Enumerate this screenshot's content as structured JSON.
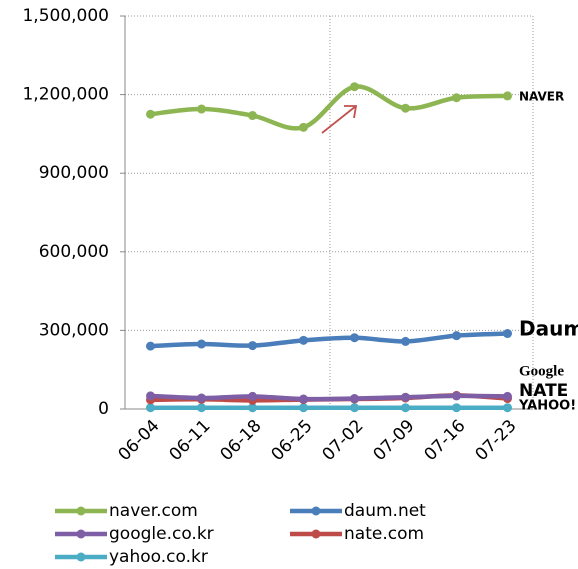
{
  "chart_data": {
    "type": "line",
    "categories": [
      "06-04",
      "06-11",
      "06-18",
      "06-25",
      "07-02",
      "07-09",
      "07-16",
      "07-23"
    ],
    "series": [
      {
        "name": "naver.com",
        "color": "#8db653",
        "values": [
          1125000,
          1145000,
          1120000,
          1075000,
          1230000,
          1148000,
          1188000,
          1195000
        ]
      },
      {
        "name": "daum.net",
        "color": "#4a7ebb",
        "values": [
          240000,
          248000,
          242000,
          262000,
          272000,
          258000,
          280000,
          288000
        ]
      },
      {
        "name": "google.co.kr",
        "color": "#7e5ea4",
        "values": [
          50000,
          42000,
          48000,
          38000,
          40000,
          45000,
          50000,
          48000
        ]
      },
      {
        "name": "nate.com",
        "color": "#be4b48",
        "values": [
          35000,
          37000,
          33000,
          36000,
          38000,
          42000,
          52000,
          40000
        ]
      },
      {
        "name": "yahoo.co.kr",
        "color": "#4bacc6",
        "values": [
          5000,
          5000,
          5000,
          5000,
          5000,
          5000,
          5000,
          5000
        ]
      }
    ],
    "ylim": [
      0,
      1500000
    ],
    "yticks": [
      0,
      {
        "value": 300000,
        "label": "300,000"
      },
      {
        "value": 600000,
        "label": "600,000"
      },
      {
        "value": 900000,
        "label": "900,000"
      },
      {
        "value": 1200000,
        "label": "1,200,000"
      },
      {
        "value": 1500000,
        "label": "1,500,000"
      }
    ],
    "grid": true,
    "legend": "bottom",
    "annotations": [
      {
        "text": "NAVER",
        "color": "#2db400"
      },
      {
        "text": "Daum",
        "color": "#f2b600"
      },
      {
        "text": "Google",
        "color": "#3a5fcd"
      },
      {
        "text": "NATE",
        "color": "#e0201b"
      },
      {
        "text": "YAHOO!",
        "color": "#6a2c91"
      }
    ]
  }
}
